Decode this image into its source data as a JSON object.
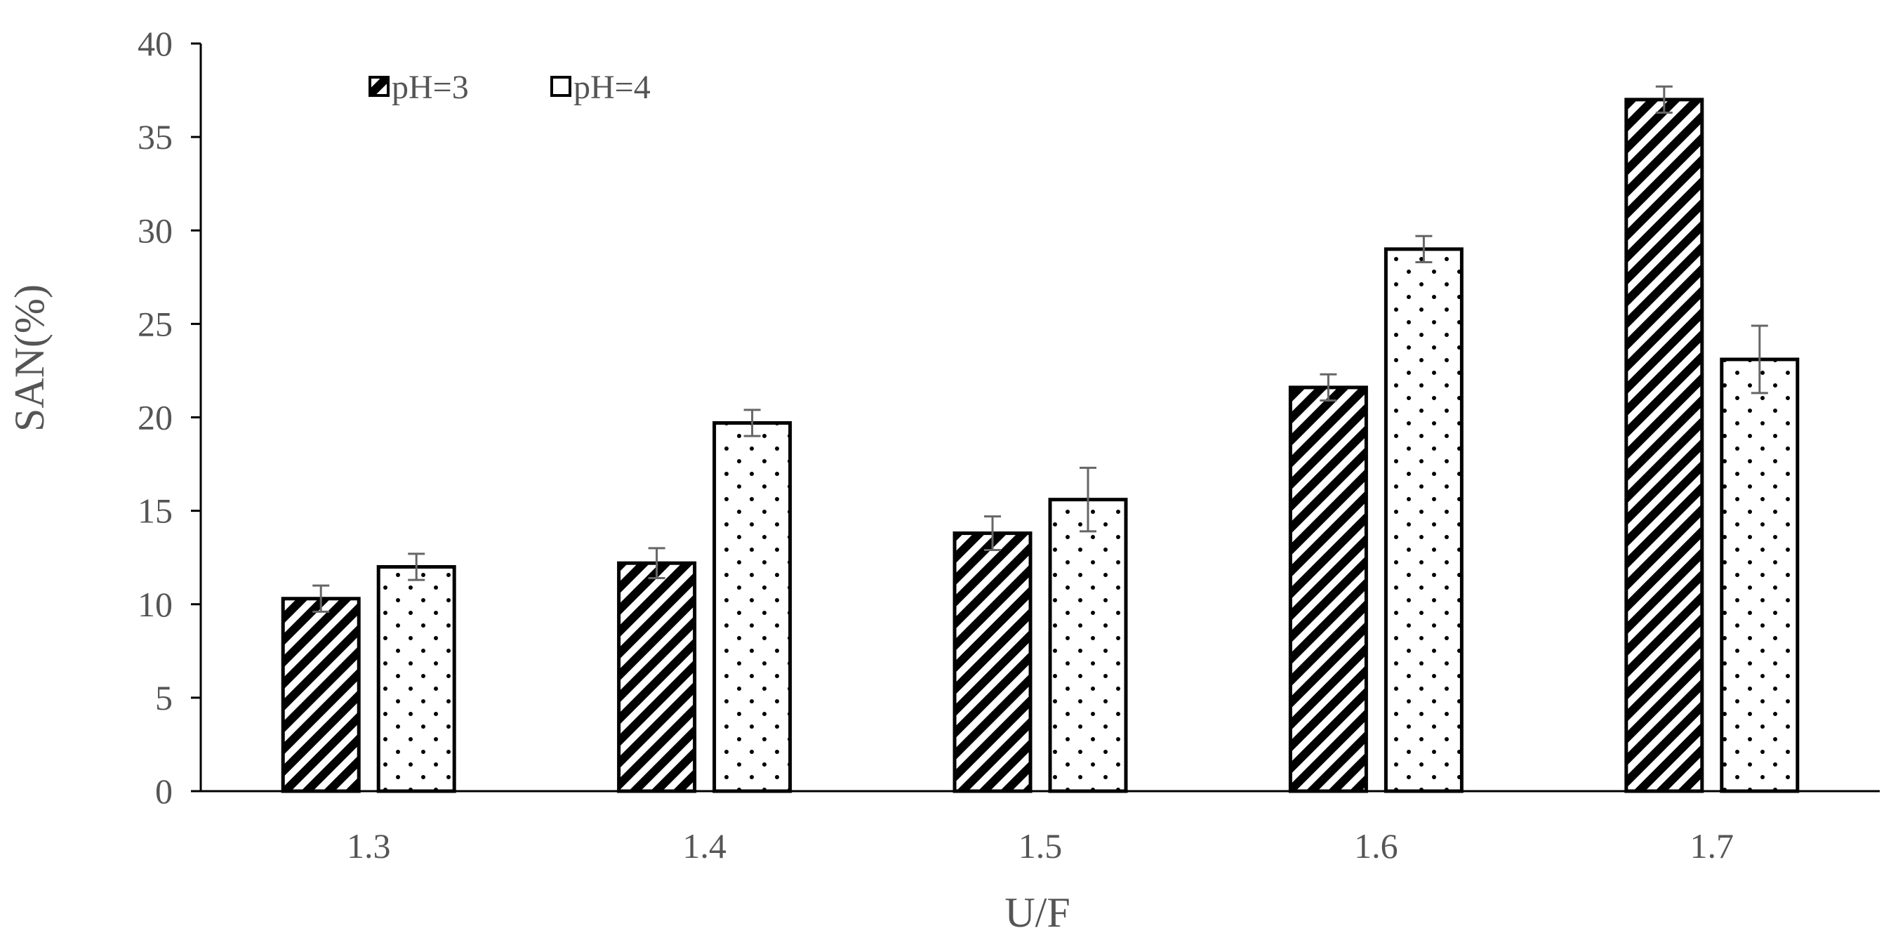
{
  "chart_data": {
    "type": "bar",
    "title": "",
    "xlabel": "U/F",
    "ylabel": "SAN(%)",
    "categories": [
      "1.3",
      "1.4",
      "1.5",
      "1.6",
      "1.7"
    ],
    "ylim": [
      0,
      40
    ],
    "yticks": [
      0,
      5,
      10,
      15,
      20,
      25,
      30,
      35,
      40
    ],
    "grid": false,
    "legend_position": "top-left",
    "series": [
      {
        "name": "pH=3",
        "pattern": "diagonal-stripes",
        "values": [
          10.3,
          12.2,
          13.8,
          21.6,
          37.0
        ],
        "errors": [
          0.7,
          0.8,
          0.9,
          0.7,
          0.7
        ]
      },
      {
        "name": "pH=4",
        "pattern": "dots",
        "values": [
          12.0,
          19.7,
          15.6,
          29.0,
          23.1
        ],
        "errors": [
          0.7,
          0.7,
          1.7,
          0.7,
          1.8
        ]
      }
    ],
    "colors": {
      "bar_outline": "#000000",
      "axis": "#000000",
      "text": "#555555",
      "error_bar": "#666666"
    }
  }
}
